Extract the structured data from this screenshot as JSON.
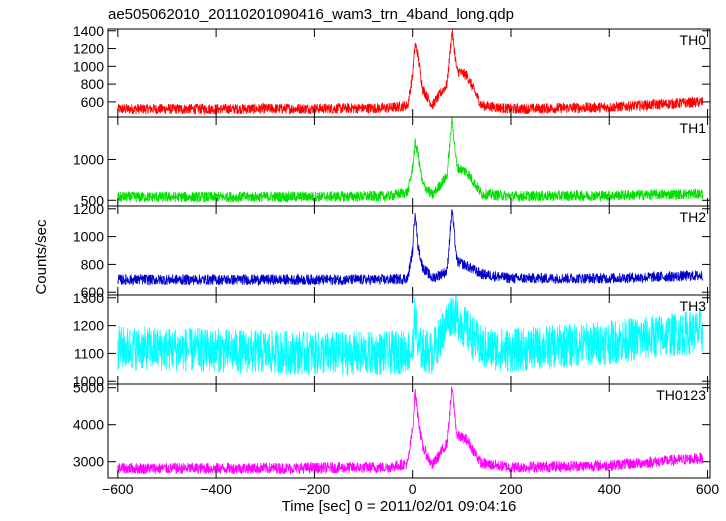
{
  "title": "ae505062010_20110201090416_wam3_trn_4band_long.qdp",
  "xlabel": "Time [sec] 0 = 2011/02/01 09:04:16",
  "ylabel": "Counts/sec",
  "chart_data": {
    "type": "line",
    "title": "ae505062010_20110201090416_wam3_trn_4band_long.qdp",
    "xlabel": "Time [sec] 0 = 2011/02/01 09:04:16",
    "ylabel": "Counts/sec",
    "xlim": [
      -620,
      605
    ],
    "x_ticks": [
      -600,
      -400,
      -200,
      0,
      200,
      400,
      600
    ],
    "grid": false,
    "panels": [
      {
        "name": "TH0",
        "color": "#ff0000",
        "ylim": [
          430,
          1420
        ],
        "y_ticks": [
          600,
          800,
          1000,
          1200,
          1400
        ],
        "series": [
          {
            "x": [
              -600,
              -400,
              -200,
              -50,
              -10,
              0,
              5,
              10,
              20,
              40,
              70,
              80,
              90,
              110,
              140,
              200,
              400,
              590
            ],
            "y": [
              520,
              520,
              525,
              530,
              560,
              900,
              1250,
              1150,
              750,
              560,
              800,
              1400,
              950,
              900,
              560,
              520,
              540,
              600
            ]
          }
        ]
      },
      {
        "name": "TH1",
        "color": "#00e000",
        "ylim": [
          430,
          1520
        ],
        "y_ticks": [
          500,
          1000
        ],
        "series": [
          {
            "x": [
              -600,
              -400,
              -200,
              -50,
              -10,
              0,
              5,
              10,
              20,
              40,
              70,
              80,
              90,
              110,
              140,
              200,
              400,
              590
            ],
            "y": [
              540,
              540,
              545,
              550,
              600,
              900,
              1200,
              1100,
              700,
              560,
              800,
              1500,
              900,
              850,
              580,
              550,
              560,
              580
            ]
          }
        ]
      },
      {
        "name": "TH2",
        "color": "#0000cc",
        "ylim": [
          580,
          1220
        ],
        "y_ticks": [
          600,
          800,
          1000,
          1200
        ],
        "series": [
          {
            "x": [
              -600,
              -400,
              -200,
              -50,
              -10,
              0,
              5,
              10,
              20,
              40,
              70,
              80,
              90,
              110,
              140,
              200,
              400,
              590
            ],
            "y": [
              690,
              690,
              690,
              690,
              700,
              900,
              1200,
              950,
              780,
              700,
              750,
              1200,
              820,
              790,
              730,
              700,
              700,
              720
            ]
          }
        ]
      },
      {
        "name": "TH3",
        "color": "#00ffff",
        "ylim": [
          990,
          1310
        ],
        "y_ticks": [
          1000,
          1100,
          1200,
          1300
        ],
        "series": [
          {
            "x": [
              -600,
              -400,
              -200,
              -50,
              0,
              5,
              10,
              40,
              80,
              140,
              200,
              400,
              590
            ],
            "y": [
              1120,
              1110,
              1100,
              1100,
              1110,
              1250,
              1120,
              1100,
              1250,
              1120,
              1110,
              1140,
              1180
            ]
          }
        ]
      },
      {
        "name": "TH0123",
        "color": "#ff00ff",
        "ylim": [
          2560,
          5100
        ],
        "y_ticks": [
          3000,
          4000,
          5000
        ],
        "series": [
          {
            "x": [
              -600,
              -400,
              -200,
              -50,
              -10,
              0,
              5,
              10,
              20,
              40,
              70,
              80,
              90,
              110,
              140,
              200,
              400,
              590
            ],
            "y": [
              2820,
              2820,
              2830,
              2850,
              2950,
              3900,
              4900,
              4300,
              3400,
              2900,
              3500,
              5000,
              3700,
              3600,
              2950,
              2850,
              2900,
              3100
            ]
          }
        ]
      }
    ]
  }
}
